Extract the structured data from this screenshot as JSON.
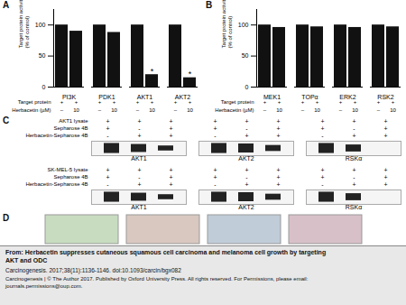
{
  "chart_data": [
    {
      "type": "bar",
      "title": "A",
      "categories": [
        "PI3K",
        "PDK1",
        "AKT1",
        "AKT2"
      ],
      "series": [
        {
          "color": "#111111",
          "values": [
            100,
            100,
            100,
            100
          ]
        },
        {
          "color": "#111111",
          "values": [
            90,
            88,
            20,
            15
          ]
        }
      ],
      "ylabel": "Target protein activity\n(% of control)",
      "ylim": [
        0,
        125
      ],
      "yticks": [
        0,
        50,
        100
      ],
      "grid": false,
      "table": [
        {
          "label": "Target protein",
          "values": [
            "+",
            "+",
            "+",
            "+",
            "+",
            "+",
            "+",
            "+"
          ]
        },
        {
          "label": "Herbacetin (µM)",
          "values": [
            "–",
            "10",
            "–",
            "10",
            "–",
            "10",
            "–",
            "10"
          ]
        }
      ],
      "annotations": [
        {
          "text": "*",
          "category": "AKT1"
        },
        {
          "text": "*",
          "category": "AKT2"
        }
      ]
    },
    {
      "type": "bar",
      "title": "B",
      "categories": [
        "MEK1",
        "TOPα",
        "ERK2",
        "RSK2"
      ],
      "series": [
        {
          "color": "#111111",
          "values": [
            100,
            100,
            100,
            100
          ]
        },
        {
          "color": "#111111",
          "values": [
            96,
            97,
            96,
            97
          ]
        }
      ],
      "ylabel": "Target protein activity\n(% of control)",
      "ylim": [
        0,
        125
      ],
      "yticks": [
        0,
        50,
        100
      ],
      "grid": false,
      "table": [
        {
          "label": "Target protein",
          "values": [
            "+",
            "+",
            "+",
            "+",
            "+",
            "+",
            "+",
            "+"
          ]
        },
        {
          "label": "Herbacetin (µM)",
          "values": [
            "–",
            "10",
            "–",
            "10",
            "–",
            "10",
            "–",
            "10"
          ]
        }
      ]
    },
    {
      "type": "blot",
      "title": "C",
      "color": "#222222",
      "sections": [
        {
          "table": [
            {
              "label": "AKT1 lysate",
              "values": [
                "+",
                "+",
                "+"
              ]
            },
            {
              "label": "Sepharose 4B",
              "values": [
                "+",
                "-",
                "+"
              ]
            },
            {
              "label": "Herbacetin-Sepharose 4B",
              "values": [
                "-",
                "+",
                "+"
              ]
            }
          ],
          "blots": [
            {
              "name": "AKT1",
              "bands": [
                1.0,
                0.8,
                0.5
              ]
            },
            {
              "name": "AKT2",
              "bands": [
                1.0,
                0.9,
                0.6
              ]
            },
            {
              "name": "RSKα",
              "bands": [
                1.0,
                0.7
              ]
            }
          ]
        },
        {
          "table": [
            {
              "label": "SK-MEL-5 lysate",
              "values": [
                "+",
                "+",
                "+"
              ]
            },
            {
              "label": "Sepharose 4B",
              "values": [
                "+",
                "-",
                "+"
              ]
            },
            {
              "label": "Herbacetin-Sepharose 4B",
              "values": [
                "-",
                "+",
                "+"
              ]
            }
          ],
          "blots": [
            {
              "name": "AKT1",
              "bands": [
                1.0,
                0.8,
                0.5
              ]
            },
            {
              "name": "AKT2",
              "bands": [
                1.0,
                0.9,
                0.6
              ]
            },
            {
              "name": "RSKα",
              "bands": [
                1.0,
                0.7
              ]
            }
          ]
        }
      ]
    },
    {
      "type": "image",
      "title": "D",
      "colors": [
        "#c8ddc0",
        "#d8c8c0",
        "#c0ccd8",
        "#d8c0c8"
      ]
    },
    {
      "type": "text",
      "title": [
        "From: Herbacetin suppresses cutaneous squamous cell carcinoma and melanoma cell growth by targeting",
        "AKT and ODC"
      ],
      "subtitle": "Carcinogenesis. 2017;38(11):1136-1146. doi:10.1093/carcin/bgx082",
      "caption": [
        "Carcinogenesis | © The Author 2017. Published by Oxford University Press. All rights reserved. For Permissions, please email:",
        "journals.permissions@oup.com."
      ]
    }
  ]
}
